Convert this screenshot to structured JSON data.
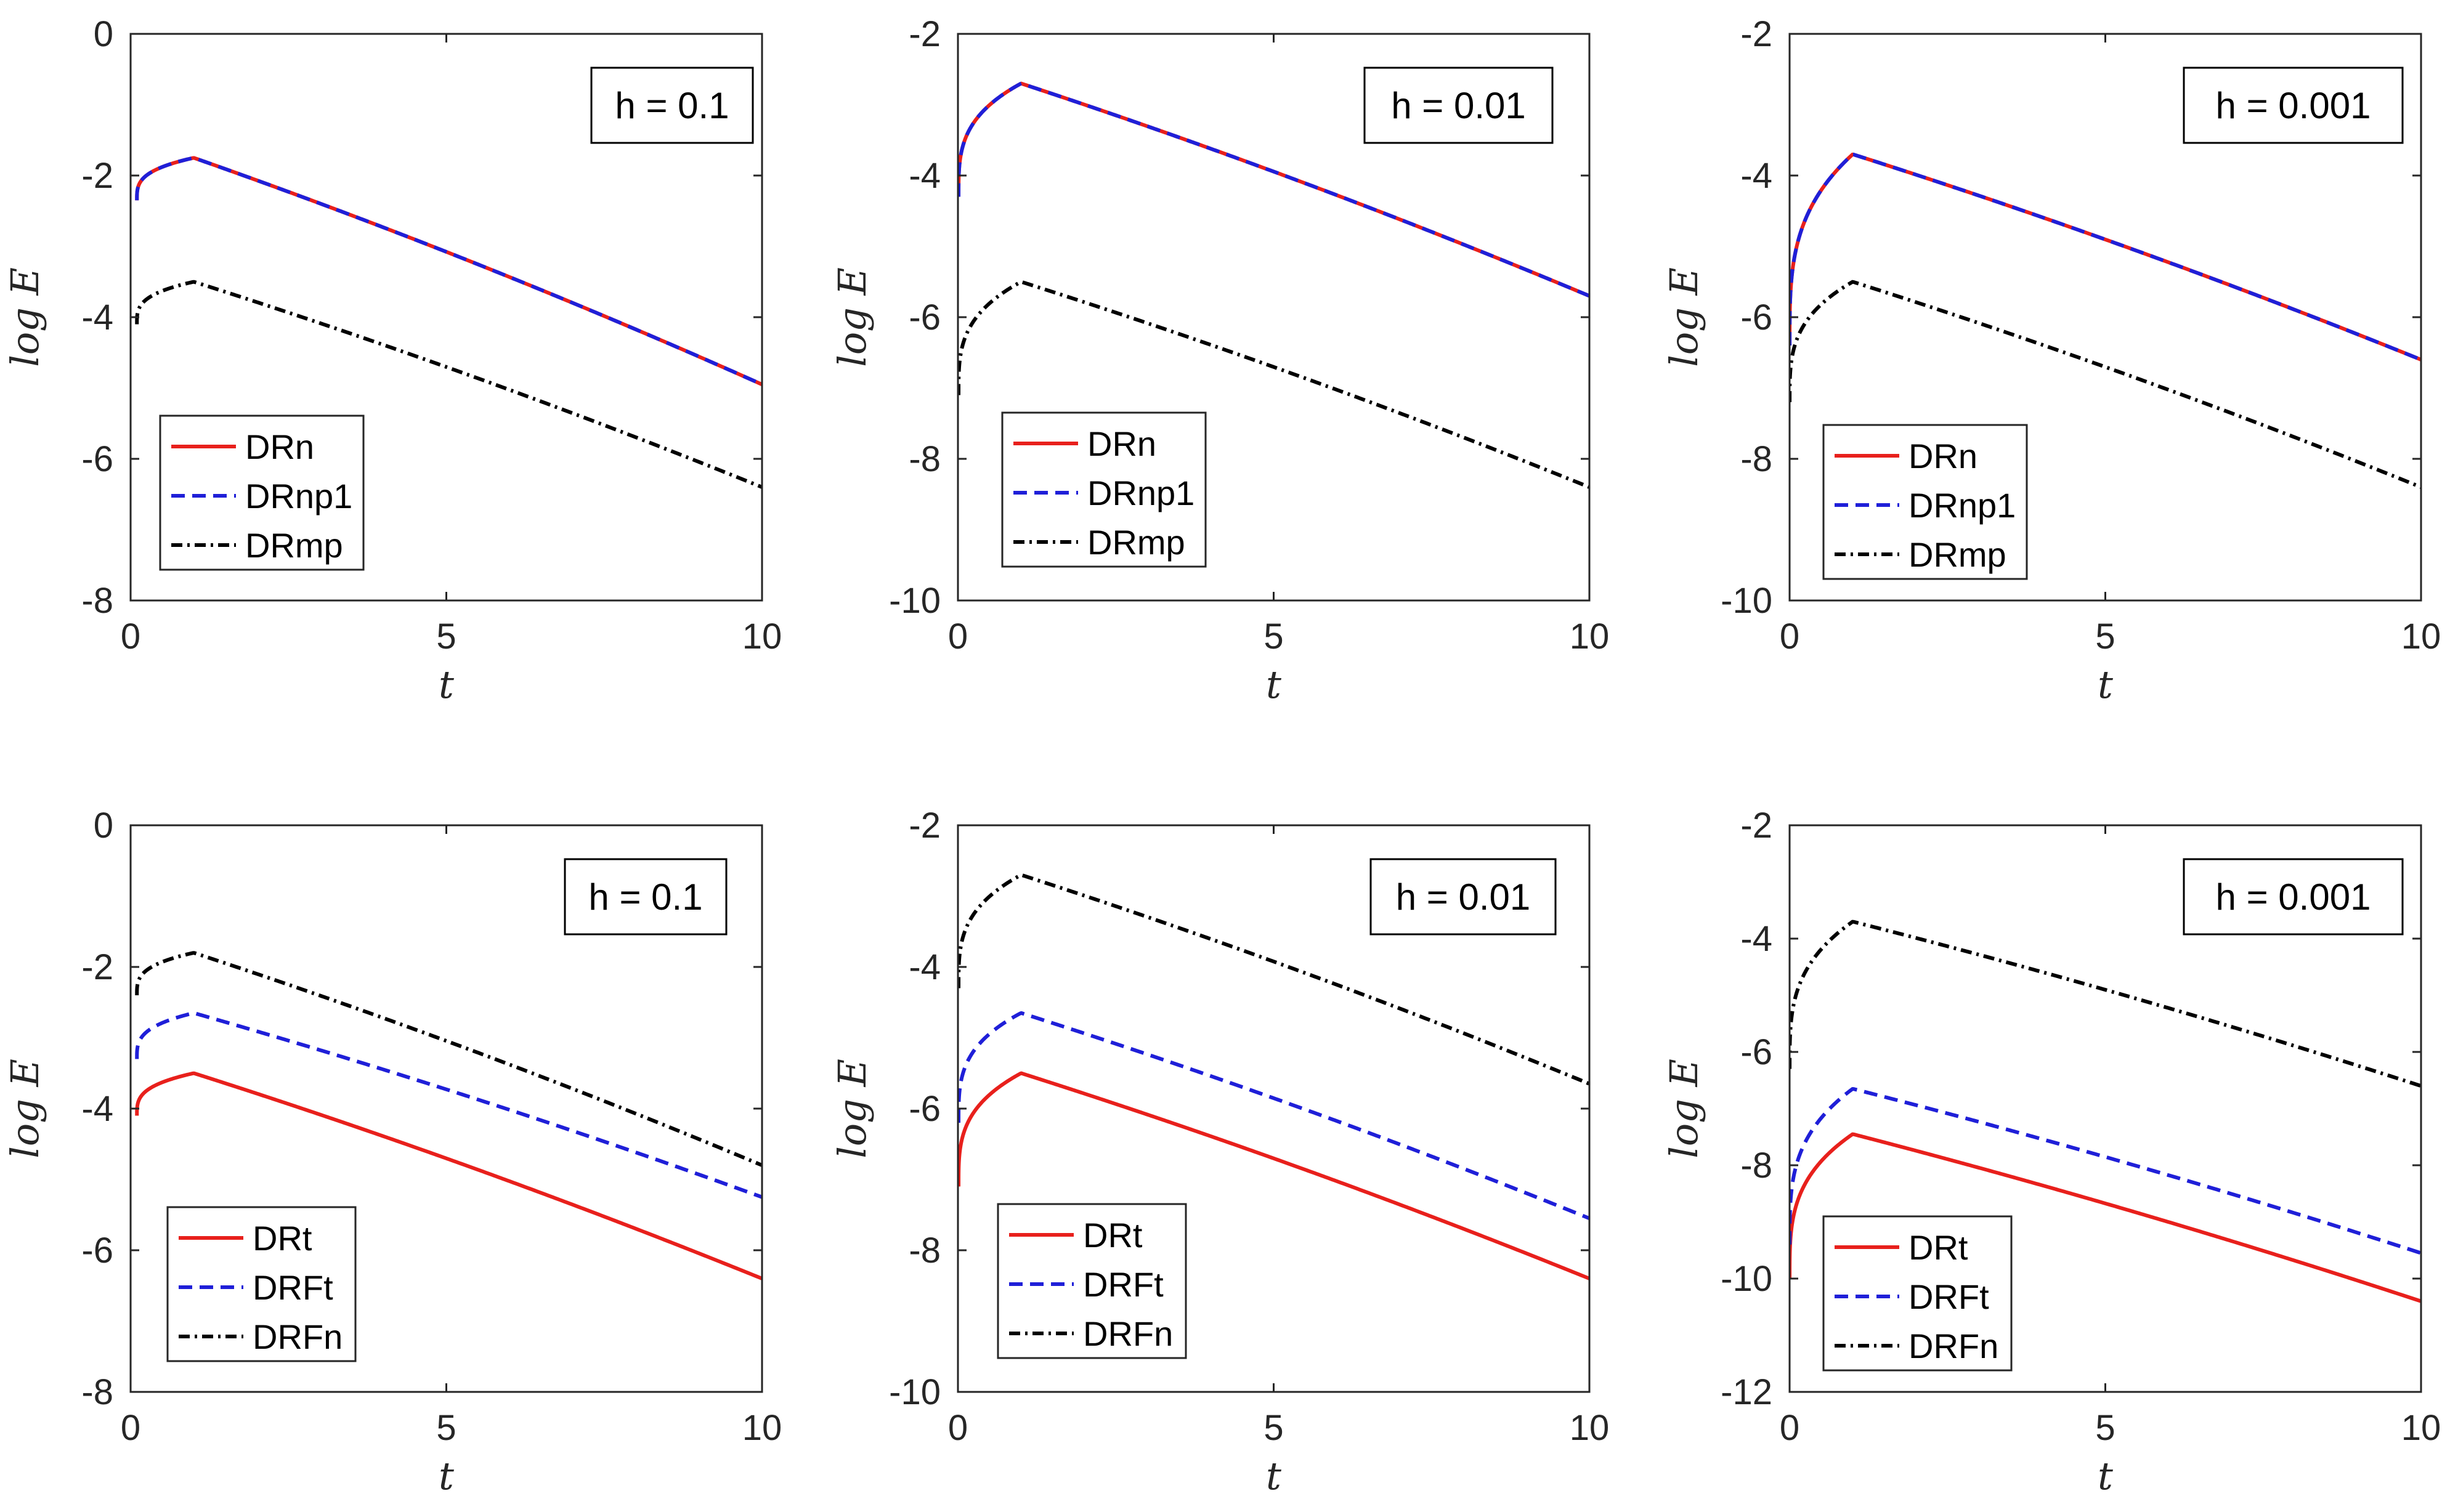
{
  "chart_data": [
    {
      "type": "line",
      "panel": "top-left",
      "annotation": "h = 0.1",
      "xlabel": "t",
      "ylabel": "log E",
      "xlim": [
        0,
        10
      ],
      "ylim": [
        -8,
        0
      ],
      "xticks": [
        "0",
        "5",
        "10"
      ],
      "yticks": [
        "0",
        "-2",
        "-4",
        "-6",
        "-8"
      ],
      "legend": "bottom-left",
      "x_start": 0.1,
      "series": [
        {
          "name": "DRn",
          "color": "#e8201c",
          "style": "solid",
          "peak": -1.75,
          "start": -2.35,
          "end": -4.95
        },
        {
          "name": "DRnp1",
          "color": "#1f1fd8",
          "style": "dashed",
          "peak": -1.75,
          "start": -2.35,
          "end": -4.95
        },
        {
          "name": "DRmp",
          "color": "#000000",
          "style": "dashdot",
          "peak": -3.5,
          "start": -4.1,
          "end": -6.4
        }
      ]
    },
    {
      "type": "line",
      "panel": "top-middle",
      "annotation": "h = 0.01",
      "xlabel": "t",
      "ylabel": "log E",
      "xlim": [
        0,
        10
      ],
      "ylim": [
        -10,
        -2
      ],
      "xticks": [
        "0",
        "5",
        "10"
      ],
      "yticks": [
        "-2",
        "-4",
        "-6",
        "-8",
        "-10"
      ],
      "legend": "bottom-left",
      "x_start": 0.01,
      "series": [
        {
          "name": "DRn",
          "color": "#e8201c",
          "style": "solid",
          "peak": -2.7,
          "start": -4.3,
          "end": -5.7
        },
        {
          "name": "DRnp1",
          "color": "#1f1fd8",
          "style": "dashed",
          "peak": -2.7,
          "start": -4.3,
          "end": -5.7
        },
        {
          "name": "DRmp",
          "color": "#000000",
          "style": "dashdot",
          "peak": -5.5,
          "start": -7.1,
          "end": -8.4
        }
      ]
    },
    {
      "type": "line",
      "panel": "top-right",
      "annotation": "h = 0.001",
      "xlabel": "t",
      "ylabel": "log E",
      "xlim": [
        0,
        10
      ],
      "ylim": [
        -10,
        -2
      ],
      "xticks": [
        "0",
        "5",
        "10"
      ],
      "yticks": [
        "-2",
        "-4",
        "-6",
        "-8",
        "-10"
      ],
      "legend": "bottom-left",
      "x_start": 0.001,
      "series": [
        {
          "name": "DRn",
          "color": "#e8201c",
          "style": "solid",
          "peak": -3.7,
          "start": -6.4,
          "end": -6.6
        },
        {
          "name": "DRnp1",
          "color": "#1f1fd8",
          "style": "dashed",
          "peak": -3.7,
          "start": -6.4,
          "end": -6.6
        },
        {
          "name": "DRmp",
          "color": "#000000",
          "style": "dashdot",
          "peak": -5.5,
          "start": -7.2,
          "end": -8.4
        }
      ]
    },
    {
      "type": "line",
      "panel": "bottom-left",
      "annotation": "h = 0.1",
      "xlabel": "t",
      "ylabel": "log E",
      "xlim": [
        0,
        10
      ],
      "ylim": [
        -8,
        0
      ],
      "xticks": [
        "0",
        "5",
        "10"
      ],
      "yticks": [
        "0",
        "-2",
        "-4",
        "-6",
        "-8"
      ],
      "legend": "bottom-left",
      "x_start": 0.1,
      "series": [
        {
          "name": "DRt",
          "color": "#e8201c",
          "style": "solid",
          "peak": -3.5,
          "start": -4.1,
          "end": -6.4
        },
        {
          "name": "DRFt",
          "color": "#1f1fd8",
          "style": "dashed",
          "peak": -2.65,
          "start": -3.3,
          "end": -5.25
        },
        {
          "name": "DRFn",
          "color": "#000000",
          "style": "dashdot",
          "peak": -1.8,
          "start": -2.4,
          "end": -4.8
        }
      ]
    },
    {
      "type": "line",
      "panel": "bottom-middle",
      "annotation": "h = 0.01",
      "xlabel": "t",
      "ylabel": "log E",
      "xlim": [
        0,
        10
      ],
      "ylim": [
        -10,
        -2
      ],
      "xticks": [
        "0",
        "5",
        "10"
      ],
      "yticks": [
        "-2",
        "-4",
        "-6",
        "-8",
        "-10"
      ],
      "legend": "bottom-left",
      "x_start": 0.01,
      "series": [
        {
          "name": "DRt",
          "color": "#e8201c",
          "style": "solid",
          "peak": -5.5,
          "start": -7.1,
          "end": -8.4
        },
        {
          "name": "DRFt",
          "color": "#1f1fd8",
          "style": "dashed",
          "peak": -4.65,
          "start": -6.2,
          "end": -7.55
        },
        {
          "name": "DRFn",
          "color": "#000000",
          "style": "dashdot",
          "peak": -2.7,
          "start": -4.3,
          "end": -5.65
        }
      ]
    },
    {
      "type": "line",
      "panel": "bottom-right",
      "annotation": "h = 0.001",
      "xlabel": "t",
      "ylabel": "log E",
      "xlim": [
        0,
        10
      ],
      "ylim": [
        -12,
        -2
      ],
      "xticks": [
        "0",
        "5",
        "10"
      ],
      "yticks": [
        "-2",
        "-4",
        "-6",
        "-8",
        "-10",
        "-12"
      ],
      "legend": "bottom-left",
      "x_start": 0.001,
      "series": [
        {
          "name": "DRt",
          "color": "#e8201c",
          "style": "solid",
          "peak": -7.45,
          "start": -10.0,
          "end": -10.4
        },
        {
          "name": "DRFt",
          "color": "#1f1fd8",
          "style": "dashed",
          "peak": -6.65,
          "start": -9.4,
          "end": -9.55
        },
        {
          "name": "DRFn",
          "color": "#000000",
          "style": "dashdot",
          "peak": -3.7,
          "start": -6.3,
          "end": -6.6
        }
      ]
    }
  ]
}
